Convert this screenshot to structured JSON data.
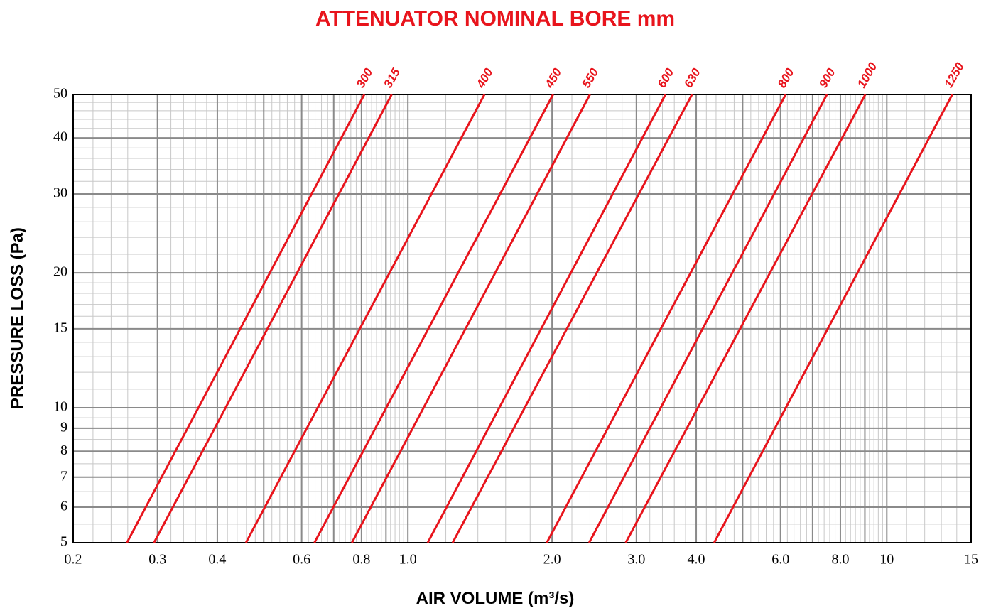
{
  "chart_data": {
    "type": "line",
    "title": "ATTENUATOR NOMINAL BORE mm",
    "x_label": "AIR VOLUME (m³/s)",
    "y_label": "PRESSURE LOSS (Pa)",
    "log_x": true,
    "log_y": true,
    "color": "#e8141c",
    "xlim": [
      0.2,
      15
    ],
    "ylim": [
      5,
      50
    ],
    "xticks": [
      0.2,
      0.3,
      0.4,
      0.6,
      0.8,
      {
        "value": 1,
        "label": "1.0"
      },
      {
        "value": 2,
        "label": "2.0"
      },
      {
        "value": 3,
        "label": "3.0"
      },
      {
        "value": 4,
        "label": "4.0"
      },
      {
        "value": 6,
        "label": "6.0"
      },
      {
        "value": 8,
        "label": "8.0"
      },
      10,
      15
    ],
    "yticks": [
      5,
      6,
      7,
      8,
      9,
      10,
      15,
      20,
      30,
      40,
      50
    ],
    "x_major_grid": [
      0.5,
      0.7,
      0.9,
      5,
      7,
      9
    ],
    "x_minor_grid": [
      {
        "from": 0.2,
        "to": 1,
        "step": 0.02
      },
      {
        "from": 1,
        "to": 10,
        "step": 0.2
      },
      {
        "from": 10,
        "to": 15,
        "step": 1
      }
    ],
    "y_minor_grid": [
      {
        "from": 5,
        "to": 10,
        "step": 0.5
      },
      {
        "from": 10,
        "to": 20,
        "step": 1
      },
      {
        "from": 20,
        "to": 50,
        "step": 2
      }
    ],
    "y": [
      5,
      50
    ],
    "series": [
      {
        "name": "300",
        "x": [
          0.259,
          0.811
        ]
      },
      {
        "name": "315",
        "x": [
          0.295,
          0.925
        ]
      },
      {
        "name": "400",
        "x": [
          0.459,
          1.445
        ]
      },
      {
        "name": "450",
        "x": [
          0.638,
          2.01
        ]
      },
      {
        "name": "550",
        "x": [
          0.764,
          2.4
        ]
      },
      {
        "name": "600",
        "x": [
          1.1,
          3.45
        ]
      },
      {
        "name": "630",
        "x": [
          1.24,
          3.92
        ]
      },
      {
        "name": "800",
        "x": [
          1.95,
          6.15
        ]
      },
      {
        "name": "900",
        "x": [
          2.39,
          7.5
        ]
      },
      {
        "name": "1000",
        "x": [
          2.85,
          9.02
        ]
      },
      {
        "name": "1250",
        "x": [
          4.36,
          13.7
        ]
      }
    ]
  }
}
